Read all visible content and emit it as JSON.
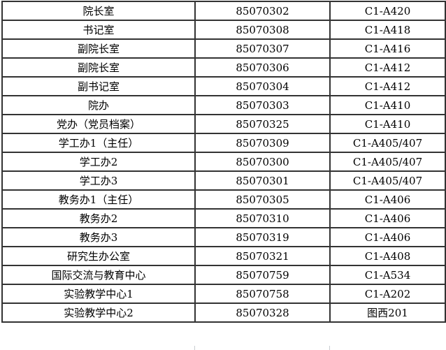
{
  "colors": {
    "border": "#333333",
    "text": "#000000",
    "background": "#ffffff",
    "gridline_stub": "#c9cdd1"
  },
  "table": {
    "columns": [
      {
        "key": "office"
      },
      {
        "key": "phone"
      },
      {
        "key": "room"
      }
    ],
    "rows": [
      {
        "office": "院长室",
        "phone": "85070302",
        "room": "C1-A420"
      },
      {
        "office": "书记室",
        "phone": "85070308",
        "room": "C1-A418"
      },
      {
        "office": "副院长室",
        "phone": "85070307",
        "room": "C1-A416"
      },
      {
        "office": "副院长室",
        "phone": "85070306",
        "room": "C1-A412"
      },
      {
        "office": "副书记室",
        "phone": "85070304",
        "room": "C1-A412"
      },
      {
        "office": "院办",
        "phone": "85070303",
        "room": "C1-A410"
      },
      {
        "office": "党办（党员档案）",
        "phone": "85070325",
        "room": "C1-A410"
      },
      {
        "office": "学工办1（主任）",
        "phone": "85070309",
        "room": "C1-A405/407"
      },
      {
        "office": "学工办2",
        "phone": "85070300",
        "room": "C1-A405/407"
      },
      {
        "office": "学工办3",
        "phone": "85070301",
        "room": "C1-A405/407"
      },
      {
        "office": "教务办1（主任）",
        "phone": "85070305",
        "room": "C1-A406"
      },
      {
        "office": "教务办2",
        "phone": "85070310",
        "room": "C1-A406"
      },
      {
        "office": "教务办3",
        "phone": "85070319",
        "room": "C1-A406"
      },
      {
        "office": "研究生办公室",
        "phone": "85070321",
        "room": "C1-A408"
      },
      {
        "office": "国际交流与教育中心",
        "phone": "85070759",
        "room": "C1-A534"
      },
      {
        "office": "实验教学中心1",
        "phone": "85070758",
        "room": "C1-A202"
      },
      {
        "office": "实验教学中心2",
        "phone": "85070328",
        "room": "图西201"
      }
    ]
  }
}
